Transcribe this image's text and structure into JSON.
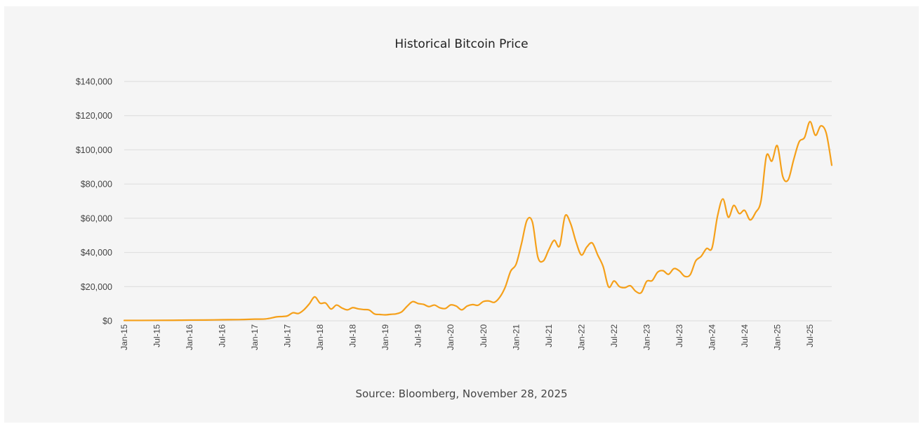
{
  "chart_data": {
    "type": "line",
    "title": "Historical Bitcoin Price",
    "source": "Source: Bloomberg, November 28, 2025",
    "xlabel": "",
    "ylabel": "",
    "ylim": [
      0,
      140000
    ],
    "y_ticks": [
      0,
      20000,
      40000,
      60000,
      80000,
      100000,
      120000,
      140000
    ],
    "y_tick_labels": [
      "$0",
      "$20,000",
      "$40,000",
      "$60,000",
      "$80,000",
      "$100,000",
      "$120,000",
      "$140,000"
    ],
    "x_tick_labels": [
      "Jan-15",
      "Jul-15",
      "Jan-16",
      "Jul-16",
      "Jan-17",
      "Jul-17",
      "Jan-18",
      "Jul-18",
      "Jan-19",
      "Jul-19",
      "Jan-20",
      "Jul-20",
      "Jan-21",
      "Jul-21",
      "Jan-22",
      "Jul-22",
      "Jan-23",
      "Jul-23",
      "Jan-24",
      "Jul-24",
      "Jan-25",
      "Jul-25"
    ],
    "x_range": [
      "2015-01",
      "2025-11"
    ],
    "grid": true,
    "line_color": "#f5a01a",
    "series": [
      {
        "name": "",
        "x": [
          "2015-01",
          "2015-04",
          "2015-07",
          "2015-10",
          "2016-01",
          "2016-04",
          "2016-07",
          "2016-10",
          "2017-01",
          "2017-03",
          "2017-05",
          "2017-06",
          "2017-07",
          "2017-08",
          "2017-09",
          "2017-10",
          "2017-11",
          "2017-12",
          "2018-01",
          "2018-02",
          "2018-03",
          "2018-04",
          "2018-05",
          "2018-06",
          "2018-07",
          "2018-08",
          "2018-09",
          "2018-10",
          "2018-11",
          "2018-12",
          "2019-01",
          "2019-02",
          "2019-03",
          "2019-04",
          "2019-05",
          "2019-06",
          "2019-07",
          "2019-08",
          "2019-09",
          "2019-10",
          "2019-11",
          "2019-12",
          "2020-01",
          "2020-02",
          "2020-03",
          "2020-04",
          "2020-05",
          "2020-06",
          "2020-07",
          "2020-08",
          "2020-09",
          "2020-10",
          "2020-11",
          "2020-12",
          "2021-01",
          "2021-02",
          "2021-03",
          "2021-04",
          "2021-05",
          "2021-06",
          "2021-07",
          "2021-08",
          "2021-09",
          "2021-10",
          "2021-11",
          "2021-12",
          "2022-01",
          "2022-02",
          "2022-03",
          "2022-04",
          "2022-05",
          "2022-06",
          "2022-07",
          "2022-08",
          "2022-09",
          "2022-10",
          "2022-11",
          "2022-12",
          "2023-01",
          "2023-02",
          "2023-03",
          "2023-04",
          "2023-05",
          "2023-06",
          "2023-07",
          "2023-08",
          "2023-09",
          "2023-10",
          "2023-11",
          "2023-12",
          "2024-01",
          "2024-02",
          "2024-03",
          "2024-04",
          "2024-05",
          "2024-06",
          "2024-07",
          "2024-08",
          "2024-09",
          "2024-10",
          "2024-11",
          "2024-12",
          "2025-01",
          "2025-02",
          "2025-03",
          "2025-04",
          "2025-05",
          "2025-06",
          "2025-07",
          "2025-08",
          "2025-09",
          "2025-10",
          "2025-11"
        ],
        "values": [
          220,
          240,
          280,
          310,
          430,
          450,
          620,
          700,
          960,
          1100,
          2300,
          2500,
          2900,
          4700,
          4300,
          6400,
          9900,
          14000,
          10300,
          10400,
          6900,
          9200,
          7500,
          6400,
          7700,
          7000,
          6600,
          6300,
          4000,
          3700,
          3500,
          3800,
          4100,
          5300,
          8600,
          11200,
          10100,
          9600,
          8300,
          9200,
          7600,
          7200,
          9300,
          8600,
          6400,
          8600,
          9500,
          9100,
          11300,
          11600,
          10800,
          13800,
          19700,
          29000,
          33100,
          45200,
          58800,
          57700,
          37300,
          35000,
          41500,
          47100,
          43800,
          61300,
          57000,
          46300,
          38500,
          43200,
          45500,
          38500,
          31700,
          19800,
          23300,
          20000,
          19400,
          20500,
          17200,
          16500,
          23100,
          23500,
          28400,
          29300,
          27200,
          30500,
          29200,
          26000,
          27000,
          35000,
          37700,
          42300,
          42600,
          61100,
          71300,
          60600,
          67500,
          62700,
          64600,
          59000,
          63300,
          70200,
          96500,
          93400,
          102400,
          84400,
          82500,
          94200,
          104600,
          107200,
          116500,
          108500,
          114000,
          109600,
          91000
        ]
      }
    ]
  }
}
